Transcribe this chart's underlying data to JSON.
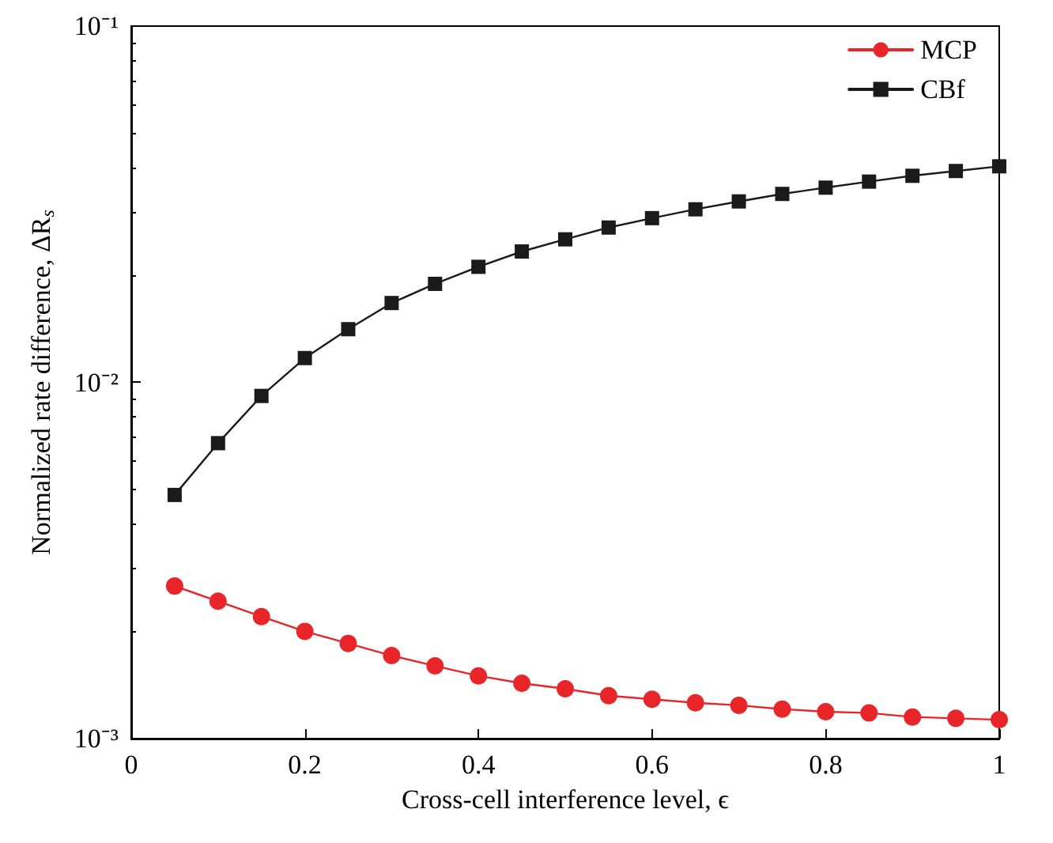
{
  "chart_data": {
    "type": "line",
    "xlabel": "Cross-cell interference level, ϵ",
    "ylabel": "Normalized rate difference, ΔR$_{s}$",
    "log": "y",
    "grid": false,
    "legend": "top right",
    "xlim": [
      0,
      1
    ],
    "xticks": [
      0,
      0.2,
      0.4,
      0.6,
      0.8,
      1
    ],
    "ylim": [
      0.001,
      0.1
    ],
    "yticks": [
      {
        "value": 0.001,
        "label": "10⁻³"
      },
      {
        "value": 0.01,
        "label": "10⁻²"
      },
      {
        "value": 0.1,
        "label": "10⁻¹"
      }
    ],
    "x": [
      0.05,
      0.1,
      0.15,
      0.2,
      0.25,
      0.3,
      0.35,
      0.4,
      0.45,
      0.5,
      0.55,
      0.6,
      0.65,
      0.7,
      0.75,
      0.8,
      0.85,
      0.9,
      0.95,
      1
    ],
    "series": [
      {
        "name": "MCP",
        "color": "#e8262a",
        "marker": "circle",
        "values": [
          0.00268,
          0.00243,
          0.0022,
          0.002,
          0.00185,
          0.00171,
          0.0016,
          0.0015,
          0.00143,
          0.00138,
          0.00132,
          0.00129,
          0.00126,
          0.00124,
          0.00121,
          0.00119,
          0.00118,
          0.00115,
          0.00114,
          0.00113
        ]
      },
      {
        "name": "CBf",
        "color": "#1a1a1a",
        "marker": "square",
        "values": [
          0.00483,
          0.00675,
          0.00916,
          0.0117,
          0.0141,
          0.0167,
          0.0189,
          0.0211,
          0.0233,
          0.0252,
          0.0272,
          0.0289,
          0.0306,
          0.0322,
          0.0338,
          0.0352,
          0.0366,
          0.038,
          0.0392,
          0.0404
        ]
      }
    ]
  }
}
